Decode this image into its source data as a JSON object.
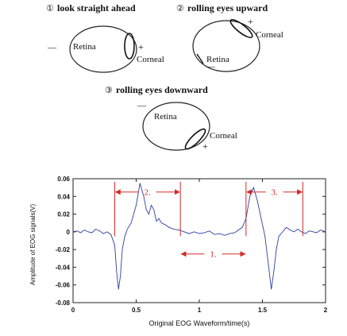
{
  "panels": {
    "p1": {
      "marker": "①",
      "title": "look straight ahead",
      "retina": "Retina",
      "corneal": "Corneal",
      "plus": "+",
      "minus": "—"
    },
    "p2": {
      "marker": "②",
      "title": "rolling eyes upward",
      "retina": "Retina",
      "corneal": "Corneal",
      "plus": "+",
      "minus": "—"
    },
    "p3": {
      "marker": "③",
      "title": "rolling eyes downward",
      "retina": "Retina",
      "corneal": "Corneal",
      "plus": "+",
      "minus": "—"
    }
  },
  "chart_data": {
    "type": "line",
    "xlabel": "Original EOG Waveform/time(s)",
    "ylabel": "Amplitude of EOG signals(V)",
    "xlim": [
      0,
      2
    ],
    "ylim": [
      -0.08,
      0.06
    ],
    "xticks": [
      0,
      0.5,
      1,
      1.5,
      2
    ],
    "xtick_labels": [
      "0",
      "0.5",
      "1",
      "1.5",
      "2"
    ],
    "yticks": [
      0.06,
      0.04,
      0.02,
      0,
      -0.02,
      -0.04,
      -0.06,
      -0.08
    ],
    "ytick_labels": [
      "0.06",
      "0.04",
      "0.02",
      "0",
      "-0.02",
      "-0.04",
      "-0.06",
      "-0.08"
    ],
    "grid": false,
    "line_color": "#2b3fa0",
    "marker_color": "#d42a2a",
    "series": [
      {
        "x": [
          0,
          0.03,
          0.06,
          0.09,
          0.12,
          0.15,
          0.18,
          0.21,
          0.24,
          0.27,
          0.3,
          0.33,
          0.345,
          0.36,
          0.375,
          0.39,
          0.41,
          0.43,
          0.46,
          0.5,
          0.53,
          0.56,
          0.58,
          0.6,
          0.62,
          0.64,
          0.66,
          0.68,
          0.7,
          0.73,
          0.76,
          0.8,
          0.84,
          0.88,
          0.92,
          0.96,
          1.0,
          1.04,
          1.08,
          1.12,
          1.16,
          1.2,
          1.24,
          1.28,
          1.31,
          1.34,
          1.37,
          1.4,
          1.43,
          1.46,
          1.49,
          1.52,
          1.55,
          1.57,
          1.59,
          1.61,
          1.63,
          1.66,
          1.69,
          1.72,
          1.75,
          1.78,
          1.81,
          1.84,
          1.87,
          1.9,
          1.93,
          1.96,
          2.0
        ],
        "y": [
          0.0,
          0.001,
          -0.001,
          0.002,
          0.0,
          -0.001,
          0.003,
          0.001,
          -0.002,
          0.0,
          -0.003,
          -0.015,
          -0.045,
          -0.065,
          -0.05,
          -0.02,
          -0.005,
          0.003,
          0.01,
          0.03,
          0.055,
          0.04,
          0.025,
          0.02,
          0.03,
          0.025,
          0.012,
          0.015,
          0.01,
          0.008,
          0.005,
          0.003,
          0.002,
          0.0,
          -0.002,
          0.0,
          -0.002,
          -0.001,
          0.001,
          -0.003,
          -0.002,
          -0.004,
          -0.002,
          -0.001,
          0.002,
          0.005,
          0.015,
          0.04,
          0.05,
          0.035,
          0.015,
          -0.005,
          -0.04,
          -0.065,
          -0.045,
          -0.02,
          -0.005,
          0.0,
          0.005,
          0.002,
          0.0,
          0.003,
          0.0,
          -0.002,
          0.001,
          0.0,
          -0.001,
          0.002,
          0.0
        ]
      }
    ],
    "annotations": [
      {
        "label": "2.",
        "x_start": 0.33,
        "x_end": 0.85,
        "y": 0.045
      },
      {
        "label": "3.",
        "x_start": 1.37,
        "x_end": 1.82,
        "y": 0.045
      },
      {
        "label": "1.",
        "x_start": 0.85,
        "x_end": 1.37,
        "y": -0.025
      }
    ],
    "marker_lines": [
      0.33,
      0.85,
      1.37,
      1.82
    ]
  }
}
